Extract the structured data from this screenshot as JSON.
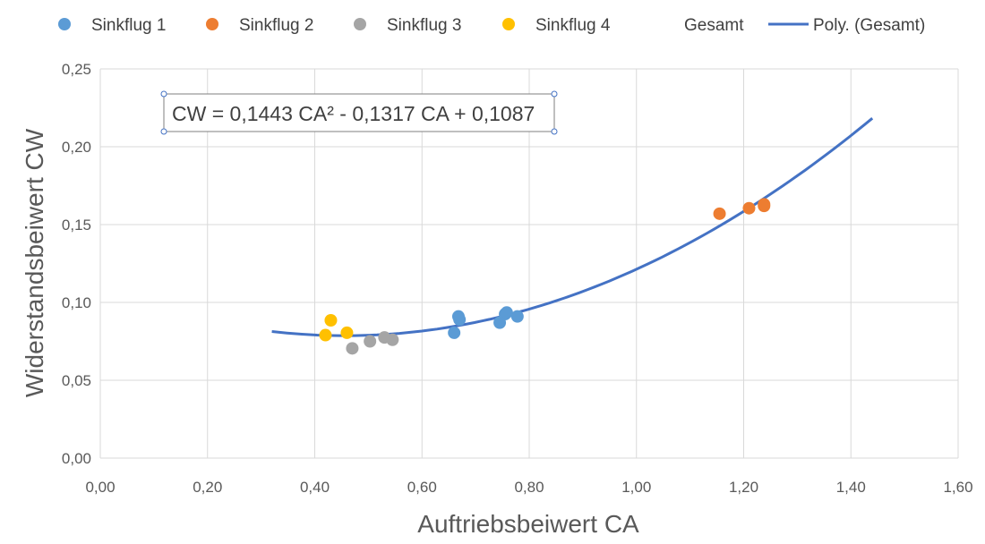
{
  "chart_data": {
    "type": "scatter",
    "xlabel": "Auftriebsbeiwert CA",
    "ylabel": "Widerstandsbeiwert CW",
    "xlim": [
      0,
      1.6
    ],
    "ylim": [
      0,
      0.25
    ],
    "x_ticks": [
      "0,00",
      "0,20",
      "0,40",
      "0,60",
      "0,80",
      "1,00",
      "1,20",
      "1,40",
      "1,60"
    ],
    "y_ticks": [
      "0,00",
      "0,05",
      "0,10",
      "0,15",
      "0,20",
      "0,25"
    ],
    "grid": true,
    "legend_position": "top",
    "series": [
      {
        "name": "Sinkflug 1",
        "color": "#5b9bd5",
        "points": [
          {
            "x": 0.66,
            "y": 0.0805
          },
          {
            "x": 0.668,
            "y": 0.091
          },
          {
            "x": 0.67,
            "y": 0.089
          },
          {
            "x": 0.745,
            "y": 0.087
          },
          {
            "x": 0.755,
            "y": 0.0925
          },
          {
            "x": 0.758,
            "y": 0.0935
          },
          {
            "x": 0.778,
            "y": 0.091
          }
        ]
      },
      {
        "name": "Sinkflug 2",
        "color": "#ed7d31",
        "points": [
          {
            "x": 1.155,
            "y": 0.157
          },
          {
            "x": 1.21,
            "y": 0.1605
          },
          {
            "x": 1.238,
            "y": 0.162
          },
          {
            "x": 1.238,
            "y": 0.163
          }
        ]
      },
      {
        "name": "Sinkflug 3",
        "color": "#a5a5a5",
        "points": [
          {
            "x": 0.47,
            "y": 0.0705
          },
          {
            "x": 0.503,
            "y": 0.075
          },
          {
            "x": 0.53,
            "y": 0.0775
          },
          {
            "x": 0.545,
            "y": 0.076
          }
        ]
      },
      {
        "name": "Sinkflug 4",
        "color": "#ffc000",
        "points": [
          {
            "x": 0.42,
            "y": 0.079
          },
          {
            "x": 0.43,
            "y": 0.0885
          },
          {
            "x": 0.46,
            "y": 0.0805
          }
        ]
      }
    ],
    "gesamt": {
      "name": "Gesamt"
    },
    "trendline": {
      "name": "Poly. (Gesamt)",
      "color": "#4472c4",
      "coefficients": [
        0.1443,
        -0.1317,
        0.1087
      ],
      "x_range": [
        0.32,
        1.44
      ],
      "equation_label": "CW = 0,1443 CA² - 0,1317 CA + 0,1087"
    }
  }
}
